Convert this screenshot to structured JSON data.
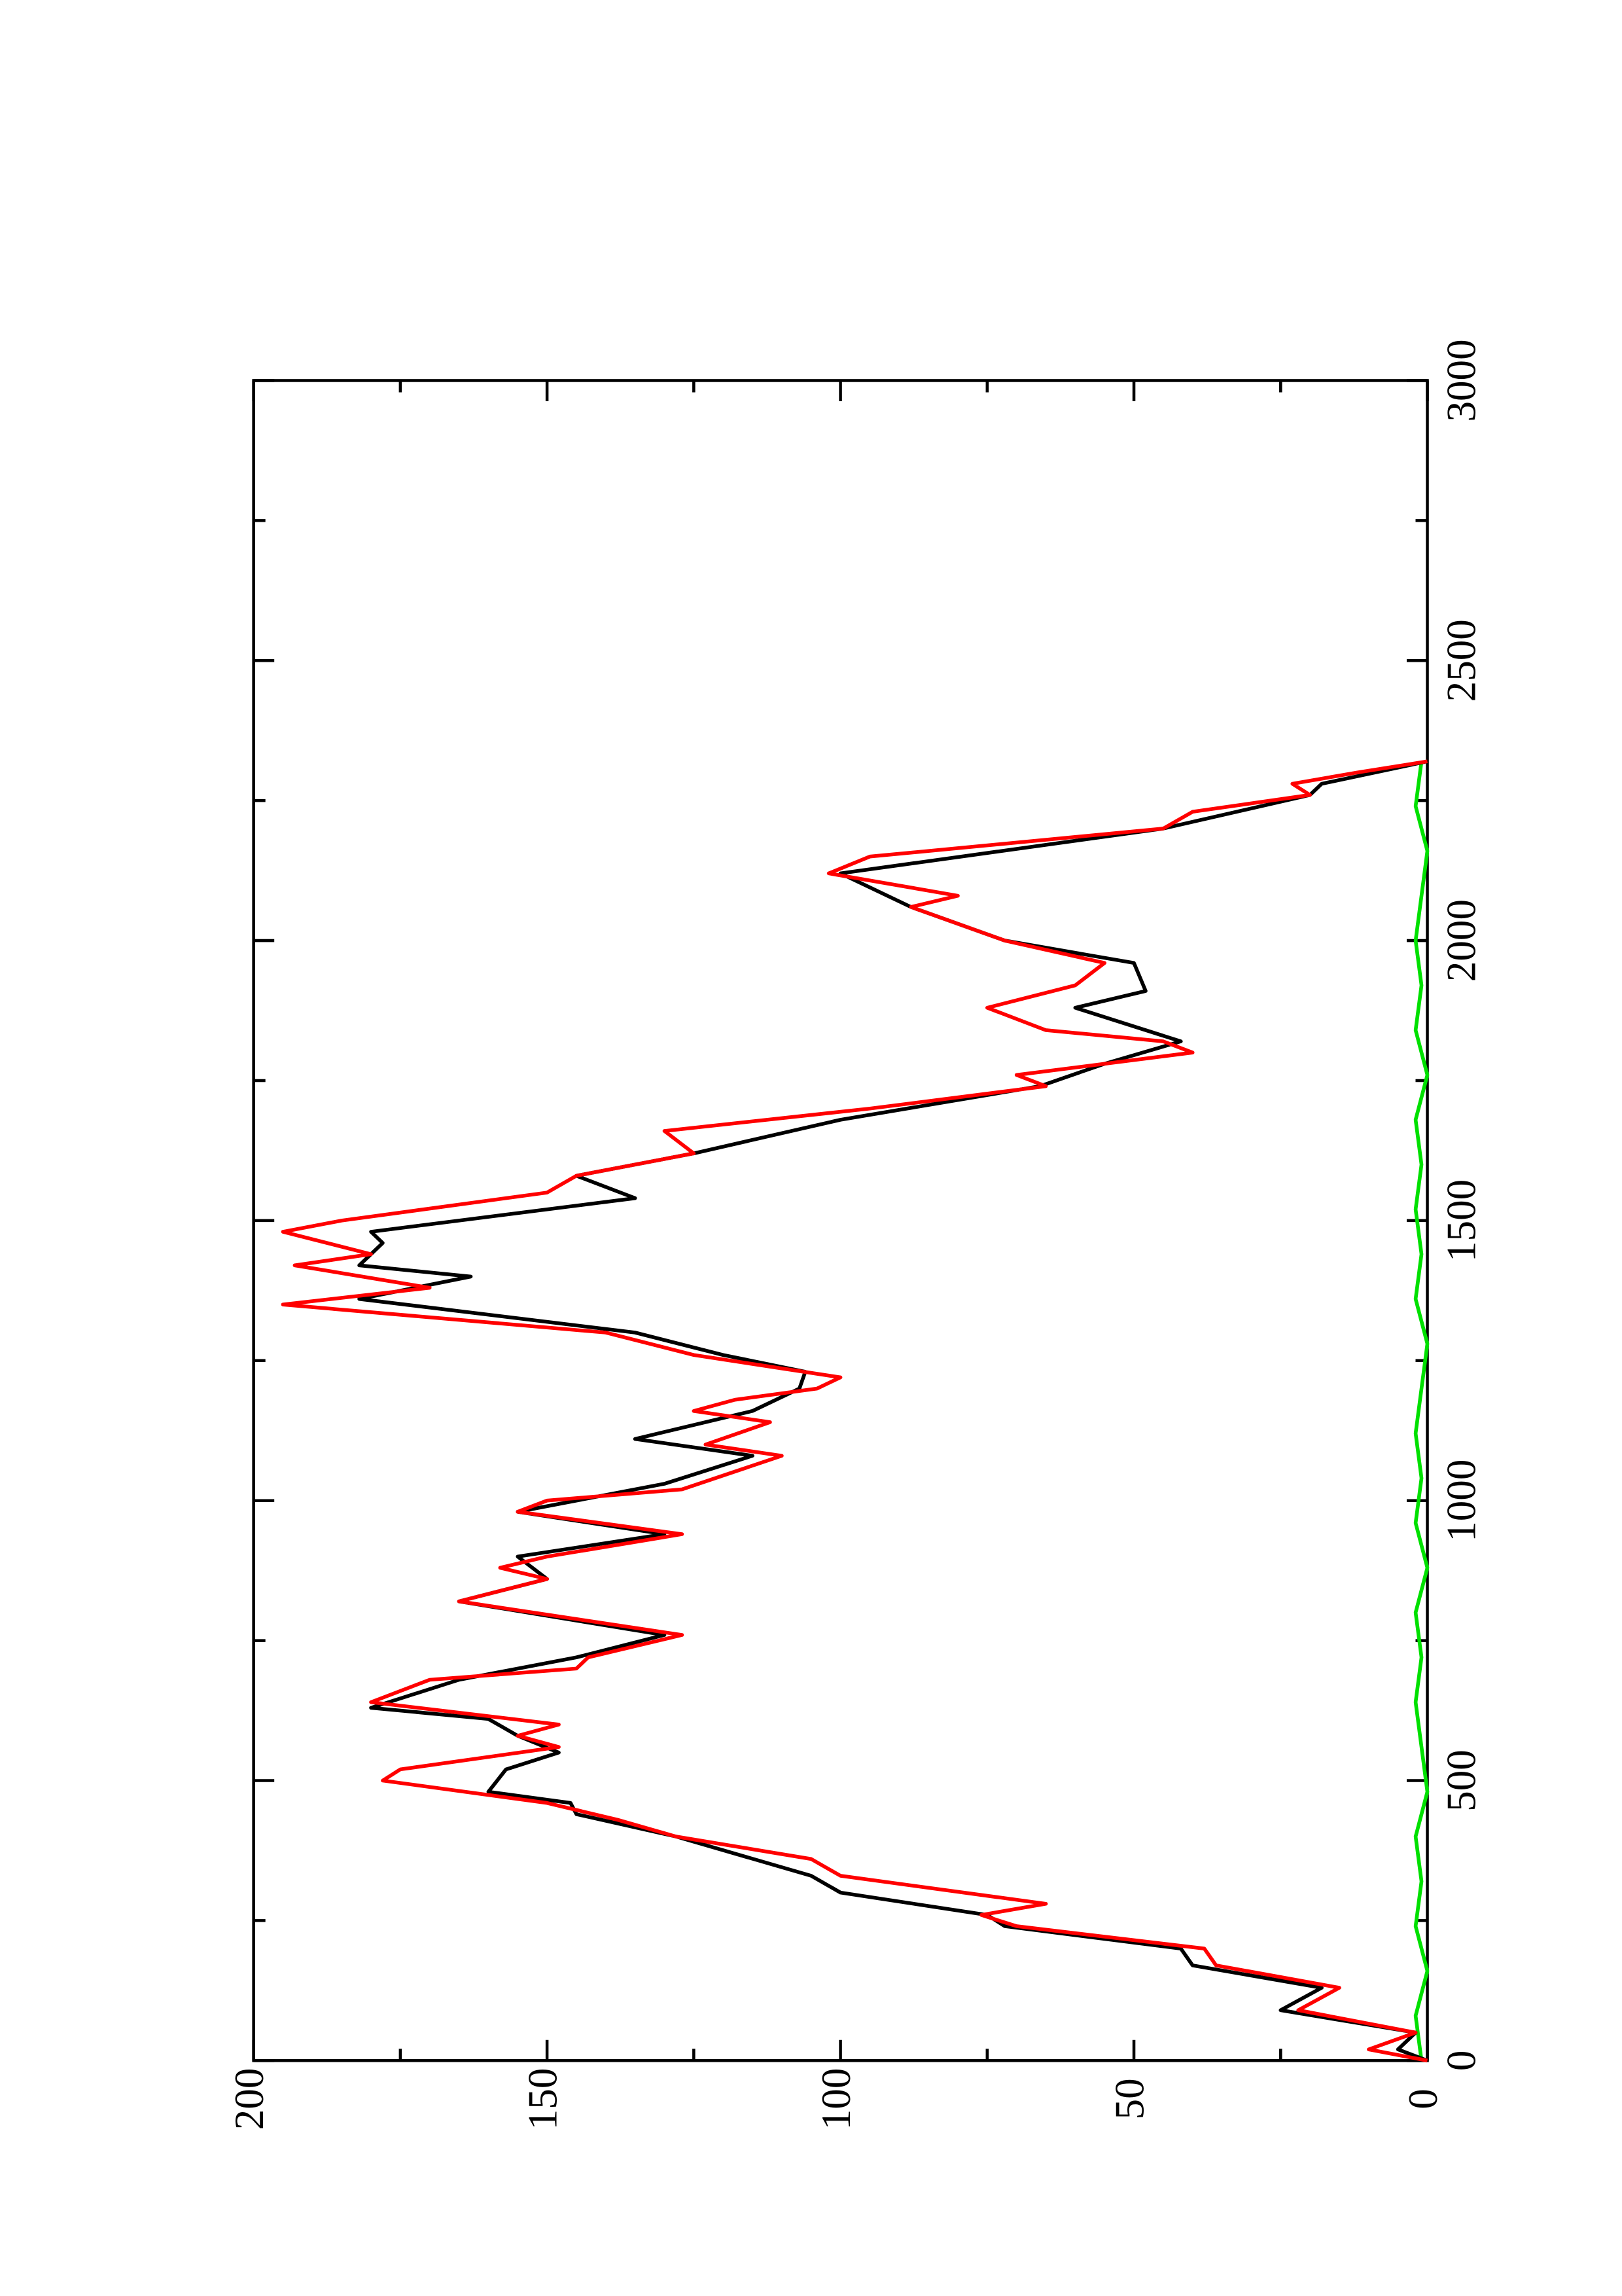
{
  "chart_data": {
    "type": "line",
    "orientation": "rotated-90",
    "xlim": [
      0,
      3000
    ],
    "ylim": [
      0,
      200
    ],
    "xticks": [
      0,
      500,
      1000,
      1500,
      2000,
      2500,
      3000
    ],
    "yticks": [
      0,
      50,
      100,
      150,
      200
    ],
    "xticks_minor": [
      250,
      750,
      1250,
      1750,
      2250,
      2750
    ],
    "yticks_minor": [
      25,
      75,
      125,
      175
    ],
    "grid": false,
    "series": [
      {
        "name": null,
        "color": "#000000",
        "x": [
          0,
          20,
          50,
          90,
          130,
          170,
          200,
          240,
          260,
          300,
          330,
          400,
          440,
          460,
          480,
          520,
          550,
          580,
          610,
          630,
          680,
          720,
          760,
          820,
          860,
          900,
          940,
          980,
          1030,
          1080,
          1110,
          1160,
          1200,
          1230,
          1260,
          1300,
          1360,
          1400,
          1420,
          1460,
          1480,
          1500,
          1540,
          1580,
          1620,
          1680,
          1740,
          1780,
          1820,
          1880,
          1910,
          1960,
          2000,
          2060,
          2120,
          2200,
          2260,
          2280,
          2320
        ],
        "values": [
          0,
          5,
          2,
          25,
          18,
          40,
          42,
          72,
          75,
          100,
          105,
          128,
          145,
          146,
          160,
          157,
          148,
          155,
          160,
          180,
          165,
          145,
          130,
          165,
          150,
          155,
          130,
          155,
          130,
          115,
          135,
          115,
          107,
          106,
          120,
          135,
          182,
          163,
          182,
          178,
          180,
          165,
          135,
          145,
          125,
          100,
          66,
          55,
          42,
          60,
          48,
          50,
          72,
          88,
          100,
          45,
          20,
          18,
          0
        ]
      },
      {
        "name": null,
        "color": "#ff0000",
        "x": [
          0,
          20,
          50,
          90,
          130,
          170,
          200,
          240,
          260,
          280,
          330,
          360,
          400,
          430,
          460,
          500,
          520,
          560,
          580,
          600,
          640,
          680,
          700,
          720,
          760,
          820,
          860,
          880,
          900,
          940,
          980,
          1000,
          1020,
          1080,
          1100,
          1140,
          1160,
          1180,
          1200,
          1220,
          1260,
          1300,
          1350,
          1380,
          1420,
          1440,
          1480,
          1500,
          1550,
          1580,
          1620,
          1660,
          1700,
          1740,
          1760,
          1800,
          1820,
          1840,
          1880,
          1920,
          1960,
          2000,
          2060,
          2080,
          2120,
          2150,
          2200,
          2230,
          2260,
          2280,
          2300,
          2320
        ],
        "values": [
          0,
          10,
          2,
          22,
          15,
          36,
          38,
          70,
          76,
          65,
          100,
          105,
          128,
          138,
          150,
          178,
          175,
          148,
          155,
          148,
          180,
          170,
          145,
          143,
          127,
          165,
          150,
          158,
          150,
          127,
          155,
          150,
          127,
          110,
          123,
          112,
          125,
          118,
          104,
          100,
          125,
          140,
          195,
          170,
          193,
          180,
          195,
          185,
          150,
          145,
          125,
          130,
          95,
          65,
          70,
          40,
          45,
          65,
          75,
          60,
          55,
          72,
          88,
          80,
          102,
          95,
          45,
          40,
          20,
          23,
          12,
          0
        ]
      },
      {
        "name": null,
        "color": "#00e000",
        "x": [
          0,
          80,
          160,
          240,
          320,
          400,
          480,
          560,
          640,
          720,
          800,
          880,
          960,
          1040,
          1120,
          1200,
          1280,
          1360,
          1440,
          1520,
          1600,
          1680,
          1760,
          1840,
          1920,
          2000,
          2080,
          2160,
          2240,
          2320
        ],
        "values": [
          1,
          2,
          0,
          2,
          1,
          2,
          0,
          1,
          2,
          1,
          2,
          0,
          2,
          1,
          2,
          1,
          0,
          2,
          1,
          2,
          1,
          2,
          0,
          2,
          1,
          2,
          1,
          0,
          2,
          1
        ]
      }
    ]
  }
}
